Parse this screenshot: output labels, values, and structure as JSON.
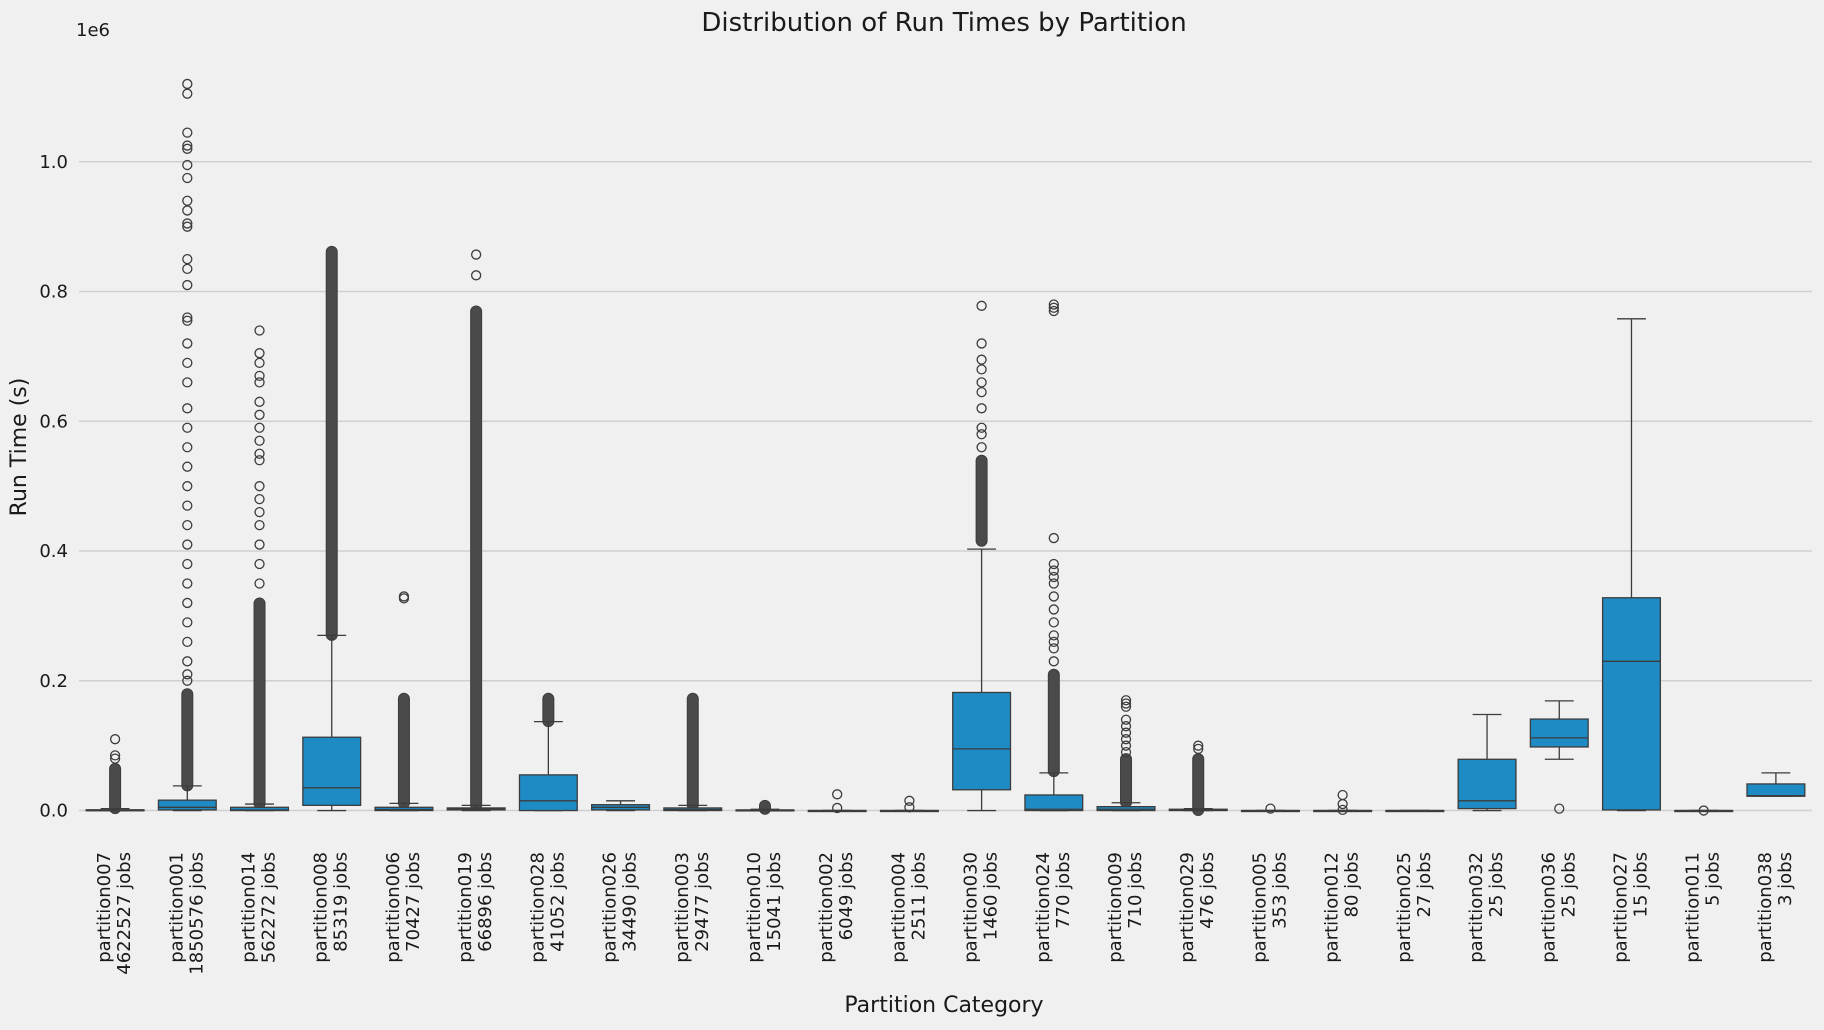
{
  "chart_data": {
    "type": "box",
    "title": "Distribution of Run Times by Partition",
    "xlabel": "Partition Category",
    "ylabel": "Run Time (s)",
    "y_offset_label": "1e6",
    "ylim": [
      -30000,
      1160000
    ],
    "yticks": [
      0,
      200000,
      400000,
      600000,
      800000,
      1000000
    ],
    "ytick_labels": [
      "0.0",
      "0.2",
      "0.4",
      "0.6",
      "0.8",
      "1.0"
    ],
    "grid": "horizontal",
    "box_color": "#1f8bc4",
    "line_color": "#3c3c3c",
    "categories": [
      {
        "name": "partition007",
        "jobs": "4622527 jobs",
        "q1": 0,
        "median": 100,
        "q3": 1200,
        "whisker_low": 0,
        "whisker_high": 3000,
        "outliers_dense": [
          3000,
          65000
        ],
        "outliers": [
          80000,
          85000,
          110000
        ]
      },
      {
        "name": "partition001",
        "jobs": "1850576 jobs",
        "q1": 1000,
        "median": 5000,
        "q3": 16000,
        "whisker_low": 0,
        "whisker_high": 38000,
        "outliers_dense": [
          38000,
          180000
        ],
        "outliers": [
          200000,
          210000,
          230000,
          260000,
          290000,
          320000,
          350000,
          380000,
          410000,
          440000,
          470000,
          500000,
          530000,
          560000,
          590000,
          620000,
          660000,
          690000,
          720000,
          755000,
          760000,
          810000,
          835000,
          850000,
          900000,
          905000,
          925000,
          940000,
          975000,
          995000,
          1020000,
          1025000,
          1045000,
          1105000,
          1120000
        ]
      },
      {
        "name": "partition014",
        "jobs": "562272 jobs",
        "q1": 0,
        "median": 800,
        "q3": 5000,
        "whisker_low": 0,
        "whisker_high": 10000,
        "outliers_dense": [
          10000,
          320000
        ],
        "outliers": [
          350000,
          380000,
          410000,
          440000,
          460000,
          480000,
          500000,
          540000,
          550000,
          570000,
          590000,
          610000,
          630000,
          660000,
          670000,
          690000,
          705000,
          740000
        ]
      },
      {
        "name": "partition008",
        "jobs": "85319 jobs",
        "q1": 8000,
        "median": 35000,
        "q3": 113000,
        "whisker_low": 0,
        "whisker_high": 270000,
        "outliers_dense": [
          270000,
          862000
        ],
        "outliers": []
      },
      {
        "name": "partition006",
        "jobs": "70427 jobs",
        "q1": 0,
        "median": 1500,
        "q3": 5000,
        "whisker_low": 0,
        "whisker_high": 11000,
        "outliers_dense": [
          11000,
          173000
        ],
        "outliers": [
          327000,
          330000
        ]
      },
      {
        "name": "partition019",
        "jobs": "66896 jobs",
        "q1": 1000,
        "median": 2500,
        "q3": 4000,
        "whisker_low": 0,
        "whisker_high": 8000,
        "outliers_dense": [
          8000,
          770000
        ],
        "outliers": [
          825000,
          857000
        ]
      },
      {
        "name": "partition028",
        "jobs": "41052 jobs",
        "q1": 0,
        "median": 15000,
        "q3": 55000,
        "whisker_low": 0,
        "whisker_high": 137000,
        "outliers_dense": [
          137000,
          173000
        ],
        "outliers": []
      },
      {
        "name": "partition026",
        "jobs": "34490 jobs",
        "q1": 1000,
        "median": 5000,
        "q3": 9000,
        "whisker_low": 0,
        "whisker_high": 15000,
        "outliers_dense": [],
        "outliers": []
      },
      {
        "name": "partition003",
        "jobs": "29477 jobs",
        "q1": 0,
        "median": 1500,
        "q3": 4000,
        "whisker_low": 0,
        "whisker_high": 8000,
        "outliers_dense": [
          8000,
          173000
        ],
        "outliers": []
      },
      {
        "name": "partition010",
        "jobs": "15041 jobs",
        "q1": 0,
        "median": 200,
        "q3": 1000,
        "whisker_low": 0,
        "whisker_high": 2000,
        "outliers_dense": [
          2000,
          8000
        ],
        "outliers": []
      },
      {
        "name": "partition002",
        "jobs": "6049 jobs",
        "q1": 0,
        "median": 0,
        "q3": 0,
        "whisker_low": 0,
        "whisker_high": 0,
        "outliers_dense": [
          1000,
          4000
        ],
        "outliers": [
          25000
        ]
      },
      {
        "name": "partition004",
        "jobs": "2511 jobs",
        "q1": 0,
        "median": 0,
        "q3": 0,
        "whisker_low": 0,
        "whisker_high": 0,
        "outliers_dense": [
          1000,
          5000
        ],
        "outliers": [
          15000
        ]
      },
      {
        "name": "partition030",
        "jobs": "1460 jobs",
        "q1": 32000,
        "median": 95000,
        "q3": 182000,
        "whisker_low": 0,
        "whisker_high": 403000,
        "outliers_dense": [
          415000,
          540000
        ],
        "outliers": [
          560000,
          580000,
          590000,
          620000,
          645000,
          660000,
          680000,
          695000,
          720000,
          778000
        ]
      },
      {
        "name": "partition024",
        "jobs": "770 jobs",
        "q1": 0,
        "median": 2000,
        "q3": 24000,
        "whisker_low": 0,
        "whisker_high": 58000,
        "outliers_dense": [
          60000,
          210000
        ],
        "outliers": [
          230000,
          250000,
          260000,
          270000,
          290000,
          310000,
          330000,
          350000,
          360000,
          370000,
          380000,
          420000,
          770000,
          775000,
          780000
        ]
      },
      {
        "name": "partition009",
        "jobs": "710 jobs",
        "q1": 0,
        "median": 2000,
        "q3": 6000,
        "whisker_low": 0,
        "whisker_high": 12000,
        "outliers_dense": [
          12000,
          80000
        ],
        "outliers": [
          90000,
          100000,
          110000,
          120000,
          130000,
          140000,
          160000,
          165000,
          170000
        ]
      },
      {
        "name": "partition029",
        "jobs": "476 jobs",
        "q1": 0,
        "median": 500,
        "q3": 2000,
        "whisker_low": 0,
        "whisker_high": 3000,
        "outliers_dense": [
          0,
          80000
        ],
        "outliers": [
          95000,
          100000
        ]
      },
      {
        "name": "partition005",
        "jobs": "353 jobs",
        "q1": 0,
        "median": 0,
        "q3": 0,
        "whisker_low": 0,
        "whisker_high": 0,
        "outliers_dense": [
          0,
          3000
        ],
        "outliers": []
      },
      {
        "name": "partition012",
        "jobs": "80 jobs",
        "q1": 0,
        "median": 0,
        "q3": 0,
        "whisker_low": 0,
        "whisker_high": 0,
        "outliers_dense": [
          0,
          1000
        ],
        "outliers": [
          10000,
          24000
        ]
      },
      {
        "name": "partition025",
        "jobs": "27 jobs",
        "q1": 0,
        "median": 0,
        "q3": 0,
        "whisker_low": 0,
        "whisker_high": 0,
        "outliers_dense": [],
        "outliers": []
      },
      {
        "name": "partition032",
        "jobs": "25 jobs",
        "q1": 3000,
        "median": 15000,
        "q3": 79000,
        "whisker_low": 0,
        "whisker_high": 148000,
        "outliers_dense": [],
        "outliers": []
      },
      {
        "name": "partition036",
        "jobs": "25 jobs",
        "q1": 98000,
        "median": 112000,
        "q3": 141000,
        "whisker_low": 79000,
        "whisker_high": 169000,
        "outliers_dense": [],
        "outliers": [
          3000
        ]
      },
      {
        "name": "partition027",
        "jobs": "15 jobs",
        "q1": 1000,
        "median": 230000,
        "q3": 328000,
        "whisker_low": 0,
        "whisker_high": 758000,
        "outliers_dense": [],
        "outliers": []
      },
      {
        "name": "partition011",
        "jobs": "5 jobs",
        "q1": 0,
        "median": 0,
        "q3": 0,
        "whisker_low": 0,
        "whisker_high": 0,
        "outliers_dense": [],
        "outliers": [
          0
        ]
      },
      {
        "name": "partition038",
        "jobs": "3 jobs",
        "q1": 22000,
        "median": 23000,
        "q3": 41000,
        "whisker_low": 22000,
        "whisker_high": 58000,
        "outliers_dense": [],
        "outliers": []
      }
    ]
  }
}
